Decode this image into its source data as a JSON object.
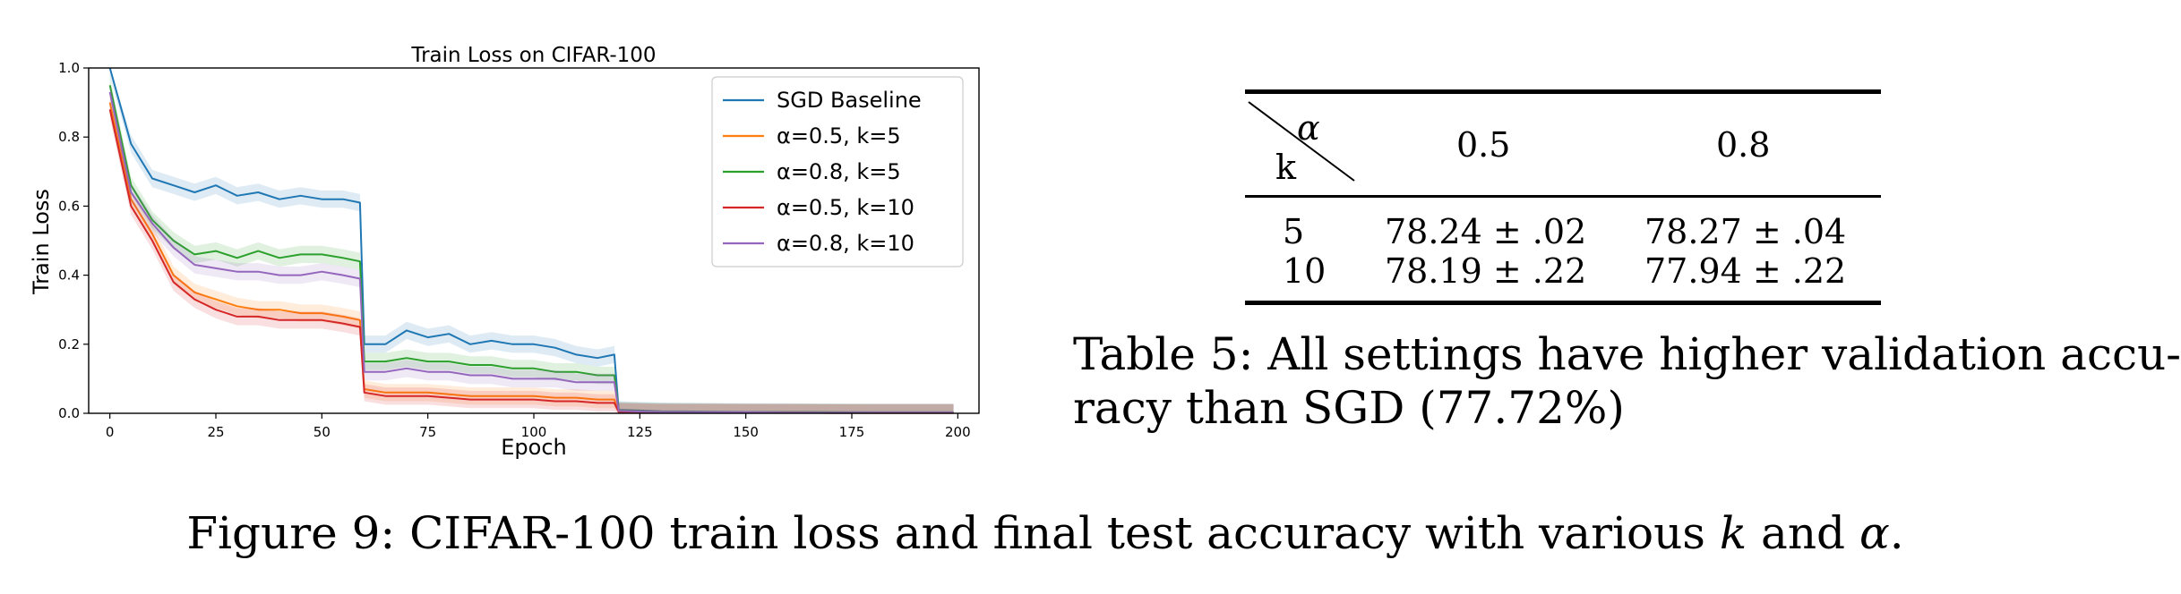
{
  "chart_data": {
    "type": "line",
    "title": "Train Loss on CIFAR-100",
    "xlabel": "Epoch",
    "ylabel": "Train Loss",
    "xlim": [
      -5,
      205
    ],
    "ylim": [
      0,
      1.0
    ],
    "xticks": [
      0,
      25,
      50,
      75,
      100,
      125,
      150,
      175,
      200
    ],
    "yticks": [
      0.0,
      0.2,
      0.4,
      0.6,
      0.8,
      1.0
    ],
    "xtick_labels": [
      "0",
      "25",
      "50",
      "75",
      "100",
      "125",
      "150",
      "175",
      "200"
    ],
    "ytick_labels": [
      "0.0",
      "0.2",
      "0.4",
      "0.6",
      "0.8",
      "1.0"
    ],
    "grid": false,
    "legend": "top-right",
    "shaded_band": true,
    "x": [
      0,
      5,
      10,
      15,
      20,
      25,
      30,
      35,
      40,
      45,
      50,
      55,
      59,
      60,
      65,
      70,
      75,
      80,
      85,
      90,
      95,
      100,
      105,
      110,
      115,
      119,
      120,
      125,
      130,
      140,
      150,
      160,
      170,
      180,
      190,
      199
    ],
    "series": [
      {
        "name": "SGD Baseline",
        "color": "#1f77b4",
        "values": [
          1.0,
          0.78,
          0.68,
          0.66,
          0.64,
          0.66,
          0.63,
          0.64,
          0.62,
          0.63,
          0.62,
          0.62,
          0.61,
          0.2,
          0.2,
          0.24,
          0.22,
          0.23,
          0.2,
          0.21,
          0.2,
          0.2,
          0.19,
          0.17,
          0.16,
          0.17,
          0.01,
          0.008,
          0.006,
          0.005,
          0.004,
          0.004,
          0.003,
          0.003,
          0.003,
          0.003
        ]
      },
      {
        "name": "α=0.5, k=5",
        "color": "#ff7f0e",
        "values": [
          0.9,
          0.62,
          0.52,
          0.4,
          0.35,
          0.33,
          0.31,
          0.3,
          0.3,
          0.29,
          0.29,
          0.28,
          0.27,
          0.07,
          0.06,
          0.06,
          0.06,
          0.055,
          0.05,
          0.05,
          0.05,
          0.05,
          0.045,
          0.045,
          0.04,
          0.04,
          0.005,
          0.004,
          0.003,
          0.003,
          0.002,
          0.002,
          0.002,
          0.002,
          0.002,
          0.002
        ]
      },
      {
        "name": "α=0.8, k=5",
        "color": "#2ca02c",
        "values": [
          0.95,
          0.66,
          0.56,
          0.5,
          0.46,
          0.47,
          0.45,
          0.47,
          0.45,
          0.46,
          0.46,
          0.45,
          0.44,
          0.15,
          0.15,
          0.16,
          0.15,
          0.15,
          0.14,
          0.14,
          0.13,
          0.13,
          0.12,
          0.12,
          0.11,
          0.11,
          0.008,
          0.006,
          0.005,
          0.004,
          0.003,
          0.003,
          0.003,
          0.002,
          0.002,
          0.002
        ]
      },
      {
        "name": "α=0.5, k=10",
        "color": "#d62728",
        "values": [
          0.88,
          0.6,
          0.5,
          0.38,
          0.33,
          0.3,
          0.28,
          0.28,
          0.27,
          0.27,
          0.27,
          0.26,
          0.25,
          0.06,
          0.05,
          0.05,
          0.05,
          0.045,
          0.04,
          0.04,
          0.04,
          0.04,
          0.035,
          0.035,
          0.03,
          0.03,
          0.004,
          0.003,
          0.002,
          0.002,
          0.002,
          0.002,
          0.001,
          0.001,
          0.001,
          0.001
        ]
      },
      {
        "name": "α=0.8, k=10",
        "color": "#9467bd",
        "values": [
          0.93,
          0.64,
          0.55,
          0.48,
          0.43,
          0.42,
          0.41,
          0.41,
          0.4,
          0.4,
          0.41,
          0.4,
          0.39,
          0.12,
          0.12,
          0.13,
          0.12,
          0.12,
          0.11,
          0.11,
          0.1,
          0.1,
          0.1,
          0.09,
          0.09,
          0.09,
          0.007,
          0.005,
          0.004,
          0.003,
          0.003,
          0.002,
          0.002,
          0.002,
          0.002,
          0.002
        ]
      }
    ]
  },
  "table": {
    "header_row_label": "α",
    "header_col_label": "k",
    "columns": [
      "0.5",
      "0.8"
    ],
    "rows": [
      {
        "k": "5",
        "values": [
          "78.24 ± .02",
          "78.27 ± .04"
        ]
      },
      {
        "k": "10",
        "values": [
          "78.19 ± .22",
          "77.94 ± .22"
        ]
      }
    ]
  },
  "table_caption": {
    "line1": "Table 5: All settings have higher validation accu-",
    "line2": "racy than SGD (77.72%)"
  },
  "figure_caption": {
    "prefix": "Figure 9: CIFAR-100 train loss and final test accuracy with various ",
    "var_k": "k",
    "middle": " and ",
    "var_alpha": "α",
    "suffix": "."
  }
}
